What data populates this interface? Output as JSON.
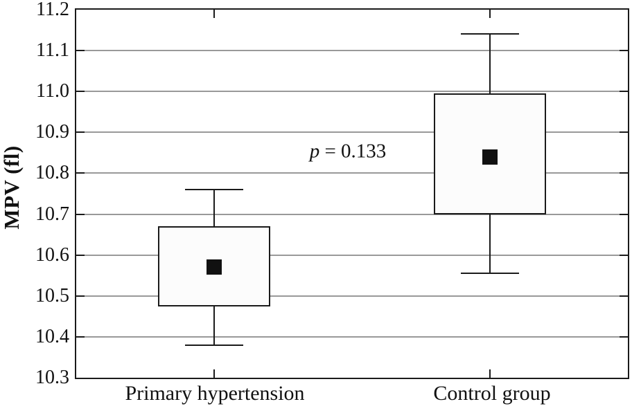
{
  "figure": {
    "background": "#ffffff",
    "line_color": "#1a1a1a",
    "gridline_color": "#999999",
    "box_fill": "#fcfcfc",
    "marker_color": "#111111"
  },
  "chart_data": {
    "type": "boxplot",
    "title": "",
    "ylabel": "MPV (fl)",
    "xlabel": "",
    "ylim": [
      10.3,
      11.2
    ],
    "ytick_labels": [
      "10.3",
      "10.4",
      "10.5",
      "10.6",
      "10.7",
      "10.8",
      "10.9",
      "11.0",
      "11.1",
      "11.2"
    ],
    "grid": "horizontal",
    "legend": "none",
    "categories": [
      "Primary hypertension",
      "Control group"
    ],
    "series": [
      {
        "category": "Primary hypertension",
        "whisker_low": 10.38,
        "box_low": 10.475,
        "mean": 10.57,
        "box_high": 10.67,
        "whisker_high": 10.76
      },
      {
        "category": "Control group",
        "whisker_low": 10.555,
        "box_low": 10.7,
        "mean": 10.84,
        "box_high": 10.995,
        "whisker_high": 11.14
      }
    ],
    "annotation": {
      "symbol": "p",
      "text": " = 0.133"
    }
  }
}
